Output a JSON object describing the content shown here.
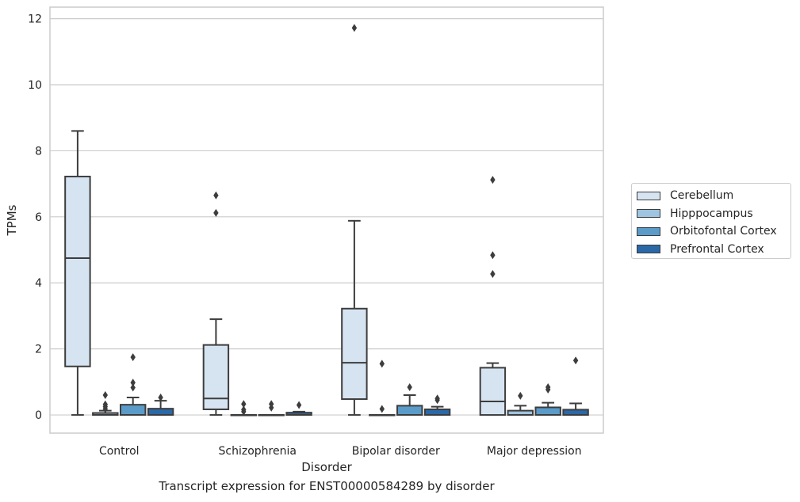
{
  "chart_data": {
    "type": "box",
    "title": "Transcript expression for ENST00000584289 by disorder",
    "xlabel": "Disorder",
    "ylabel": "TPMs",
    "ylim": [
      -0.55,
      12.35
    ],
    "yticks": [
      0,
      2,
      4,
      6,
      8,
      10,
      12
    ],
    "ytick_labels": [
      "0",
      "2",
      "4",
      "6",
      "8",
      "10",
      "12"
    ],
    "grid": "horizontal",
    "legend_position": "right",
    "categories": [
      "Control",
      "Schizophrenia",
      "Bipolar disorder",
      "Major depression"
    ],
    "series": [
      {
        "name": "Cerebellum",
        "color": "#d6e4f2",
        "boxes": [
          {
            "whisker_low": 0.0,
            "q1": 1.47,
            "median": 4.75,
            "q3": 7.22,
            "whisker_high": 8.6,
            "outliers": []
          },
          {
            "whisker_low": 0.0,
            "q1": 0.17,
            "median": 0.5,
            "q3": 2.12,
            "whisker_high": 2.9,
            "outliers": [
              6.12,
              6.65
            ]
          },
          {
            "whisker_low": 0.0,
            "q1": 0.48,
            "median": 1.58,
            "q3": 3.22,
            "whisker_high": 5.88,
            "outliers": [
              11.72
            ]
          },
          {
            "whisker_low": 0.0,
            "q1": 0.0,
            "median": 0.41,
            "q3": 1.43,
            "whisker_high": 1.57,
            "outliers": [
              4.27,
              4.84,
              7.12
            ]
          }
        ]
      },
      {
        "name": "Hipppocampus",
        "color": "#9fc4e0",
        "boxes": [
          {
            "whisker_low": 0.0,
            "q1": 0.0,
            "median": 0.0,
            "q3": 0.06,
            "whisker_high": 0.13,
            "outliers": [
              0.18,
              0.25,
              0.32,
              0.6
            ]
          },
          {
            "whisker_low": 0.0,
            "q1": 0.0,
            "median": 0.0,
            "q3": 0.0,
            "whisker_high": 0.0,
            "outliers": [
              0.1,
              0.16,
              0.33
            ]
          },
          {
            "whisker_low": 0.0,
            "q1": 0.0,
            "median": 0.0,
            "q3": 0.0,
            "whisker_high": 0.0,
            "outliers": [
              0.18,
              1.55
            ]
          },
          {
            "whisker_low": 0.0,
            "q1": 0.0,
            "median": 0.0,
            "q3": 0.13,
            "whisker_high": 0.28,
            "outliers": [
              0.58
            ]
          }
        ]
      },
      {
        "name": "Orbitofontal Cortex",
        "color": "#5a9bc9",
        "boxes": [
          {
            "whisker_low": 0.0,
            "q1": 0.0,
            "median": 0.0,
            "q3": 0.31,
            "whisker_high": 0.53,
            "outliers": [
              0.83,
              0.98,
              1.75
            ]
          },
          {
            "whisker_low": 0.0,
            "q1": 0.0,
            "median": 0.0,
            "q3": 0.0,
            "whisker_high": 0.0,
            "outliers": [
              0.22,
              0.33
            ]
          },
          {
            "whisker_low": 0.0,
            "q1": 0.0,
            "median": 0.0,
            "q3": 0.28,
            "whisker_high": 0.6,
            "outliers": [
              0.84
            ]
          },
          {
            "whisker_low": 0.0,
            "q1": 0.0,
            "median": 0.0,
            "q3": 0.23,
            "whisker_high": 0.37,
            "outliers": [
              0.77,
              0.84
            ]
          }
        ]
      },
      {
        "name": "Prefrontal Cortex",
        "color": "#2a68a8",
        "boxes": [
          {
            "whisker_low": 0.0,
            "q1": 0.0,
            "median": 0.0,
            "q3": 0.19,
            "whisker_high": 0.43,
            "outliers": [
              0.53
            ]
          },
          {
            "whisker_low": 0.0,
            "q1": 0.0,
            "median": 0.0,
            "q3": 0.07,
            "whisker_high": 0.1,
            "outliers": [
              0.3
            ]
          },
          {
            "whisker_low": 0.0,
            "q1": 0.0,
            "median": 0.0,
            "q3": 0.17,
            "whisker_high": 0.25,
            "outliers": [
              0.45,
              0.5
            ]
          },
          {
            "whisker_low": 0.0,
            "q1": 0.0,
            "median": 0.0,
            "q3": 0.16,
            "whisker_high": 0.35,
            "outliers": [
              1.65
            ]
          }
        ]
      }
    ]
  }
}
